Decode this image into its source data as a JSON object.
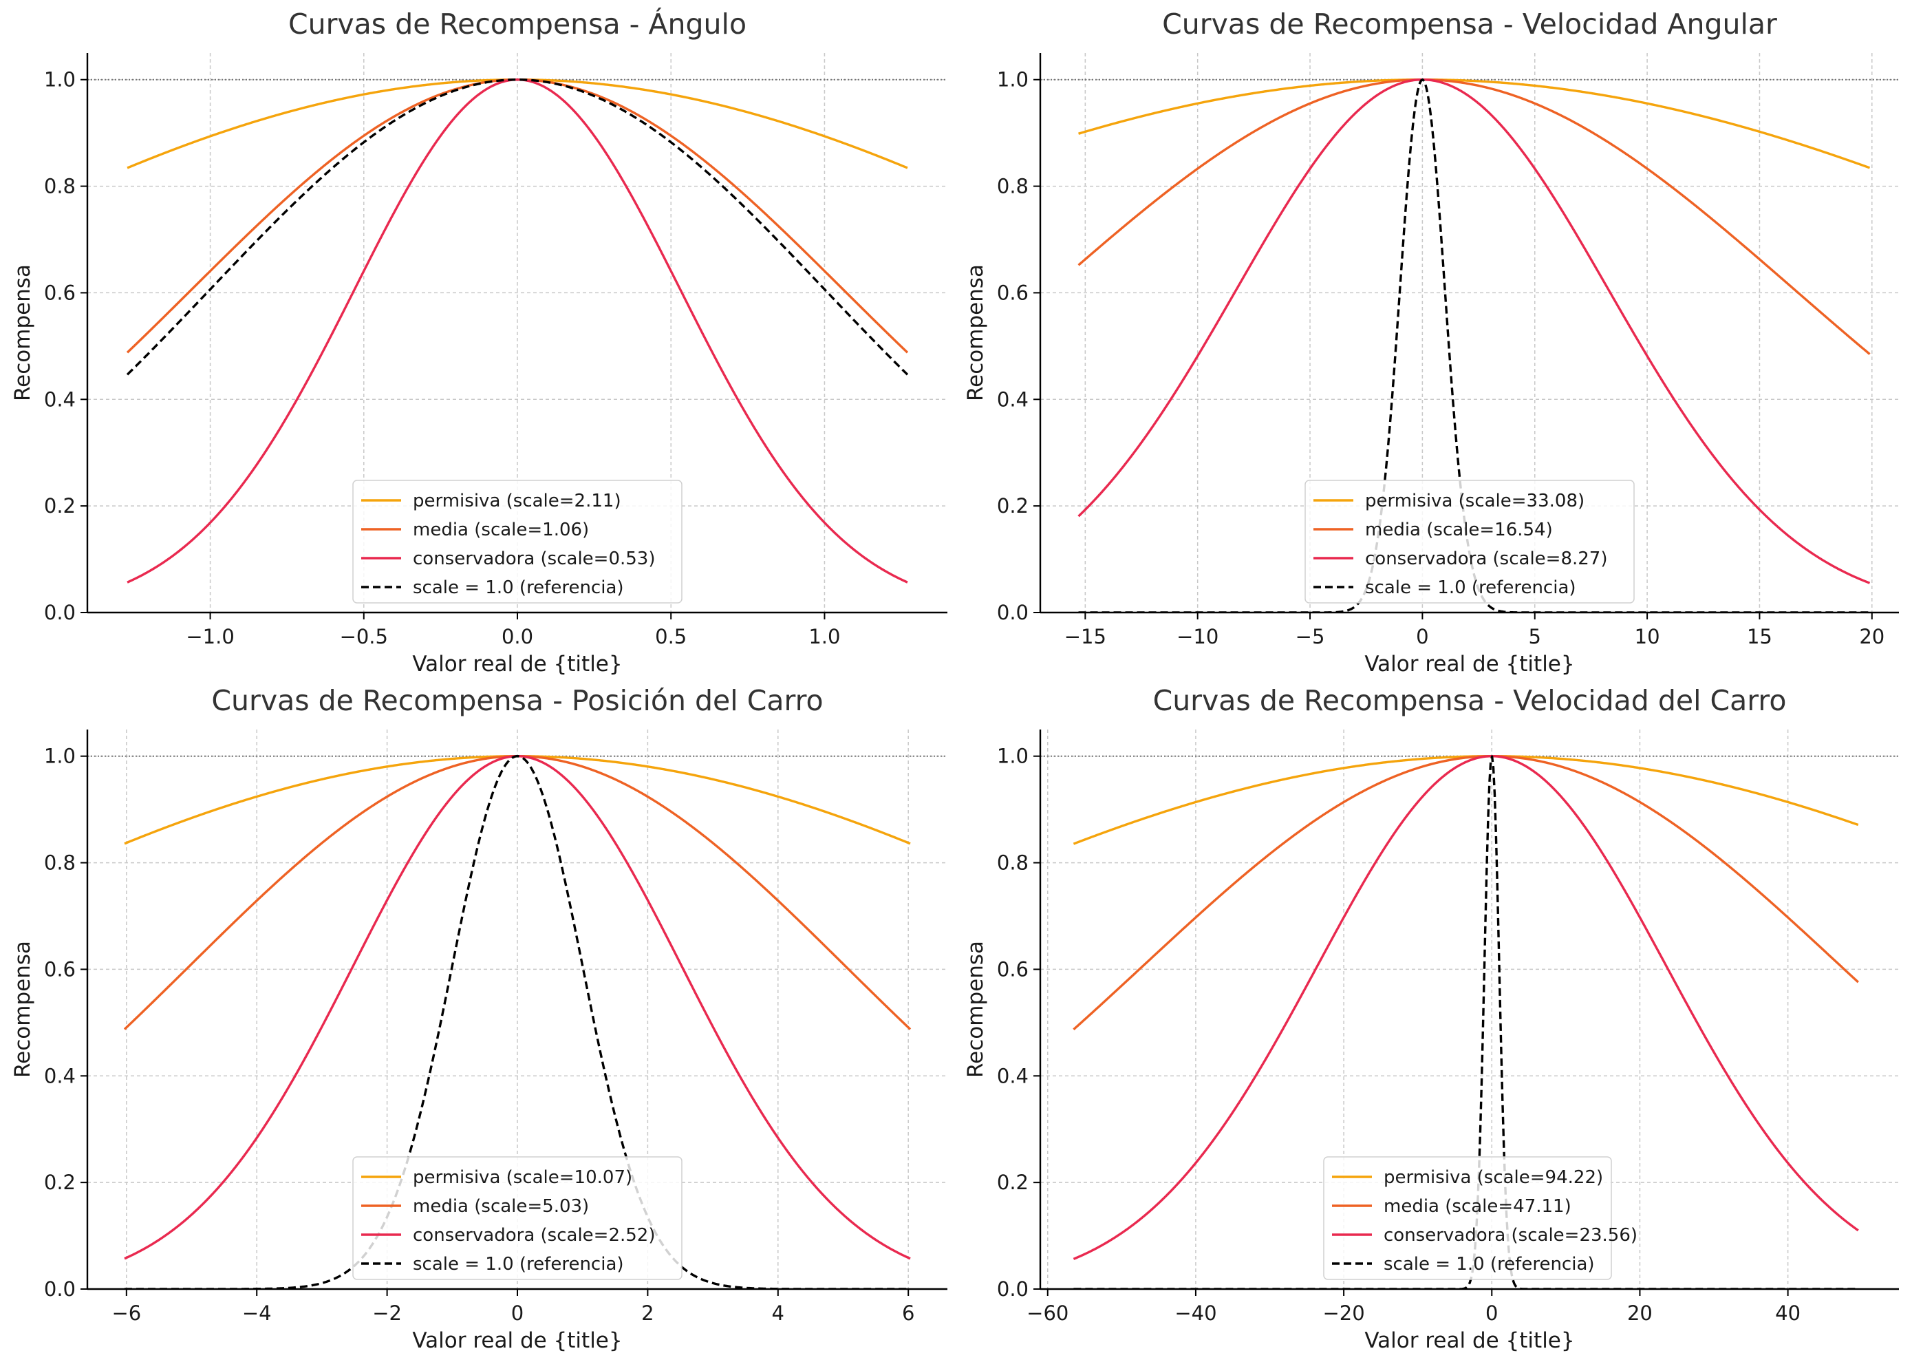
{
  "colors": {
    "permisiva": "#f5a40c",
    "media": "#ee6224",
    "conservadora": "#e9294f",
    "referencia": "#000000",
    "grid": "#c8c8c8",
    "text": "#1a1a1a",
    "title": "#333333"
  },
  "chart_data": [
    {
      "type": "line",
      "title": "Curvas de Recompensa - Ángulo",
      "xlabel": "Valor real de {title}",
      "ylabel": "Recompensa",
      "xlim": [
        -1.4,
        1.4
      ],
      "ylim": [
        0,
        1.05
      ],
      "x_range": [
        -1.27,
        1.27
      ],
      "xticks": [
        -1.0,
        -0.5,
        0.0,
        0.5,
        1.0
      ],
      "xtick_labels": [
        "−1.0",
        "−0.5",
        "0.0",
        "0.5",
        "1.0"
      ],
      "yticks": [
        0.0,
        0.2,
        0.4,
        0.6,
        0.8,
        1.0
      ],
      "ytick_labels": [
        "0.0",
        "0.2",
        "0.4",
        "0.6",
        "0.8",
        "1.0"
      ],
      "grid": true,
      "legend_position": "bottom-center",
      "series": [
        {
          "name": "permisiva (scale=2.11)",
          "scale": 2.11,
          "color_key": "permisiva",
          "style": "solid"
        },
        {
          "name": "media (scale=1.06)",
          "scale": 1.06,
          "color_key": "media",
          "style": "solid"
        },
        {
          "name": "conservadora (scale=0.53)",
          "scale": 0.53,
          "color_key": "conservadora",
          "style": "solid"
        },
        {
          "name": "scale = 1.0 (referencia)",
          "scale": 1.0,
          "color_key": "referencia",
          "style": "dashed"
        }
      ]
    },
    {
      "type": "line",
      "title": "Curvas de Recompensa - Velocidad Angular",
      "xlabel": "Valor real de {title}",
      "ylabel": "Recompensa",
      "xlim": [
        -17,
        21.2
      ],
      "ylim": [
        0,
        1.05
      ],
      "x_range": [
        -15.3,
        19.9
      ],
      "xticks": [
        -15,
        -10,
        -5,
        0,
        5,
        10,
        15,
        20
      ],
      "xtick_labels": [
        "−15",
        "−10",
        "−5",
        "0",
        "5",
        "10",
        "15",
        "20"
      ],
      "yticks": [
        0.0,
        0.2,
        0.4,
        0.6,
        0.8,
        1.0
      ],
      "ytick_labels": [
        "0.0",
        "0.2",
        "0.4",
        "0.6",
        "0.8",
        "1.0"
      ],
      "grid": true,
      "legend_position": "bottom-center",
      "series": [
        {
          "name": "permisiva (scale=33.08)",
          "scale": 33.08,
          "color_key": "permisiva",
          "style": "solid"
        },
        {
          "name": "media (scale=16.54)",
          "scale": 16.54,
          "color_key": "media",
          "style": "solid"
        },
        {
          "name": "conservadora (scale=8.27)",
          "scale": 8.27,
          "color_key": "conservadora",
          "style": "solid"
        },
        {
          "name": "scale = 1.0 (referencia)",
          "scale": 1.0,
          "color_key": "referencia",
          "style": "dashed"
        }
      ]
    },
    {
      "type": "line",
      "title": "Curvas de Recompensa - Posición del Carro",
      "xlabel": "Valor real de {title}",
      "ylabel": "Recompensa",
      "xlim": [
        -6.6,
        6.6
      ],
      "ylim": [
        0,
        1.05
      ],
      "x_range": [
        -6.03,
        6.03
      ],
      "xticks": [
        -6,
        -4,
        -2,
        0,
        2,
        4,
        6
      ],
      "xtick_labels": [
        "−6",
        "−4",
        "−2",
        "0",
        "2",
        "4",
        "6"
      ],
      "yticks": [
        0.0,
        0.2,
        0.4,
        0.6,
        0.8,
        1.0
      ],
      "ytick_labels": [
        "0.0",
        "0.2",
        "0.4",
        "0.6",
        "0.8",
        "1.0"
      ],
      "grid": true,
      "legend_position": "bottom-center",
      "series": [
        {
          "name": "permisiva (scale=10.07)",
          "scale": 10.07,
          "color_key": "permisiva",
          "style": "solid"
        },
        {
          "name": "media (scale=5.03)",
          "scale": 5.03,
          "color_key": "media",
          "style": "solid"
        },
        {
          "name": "conservadora (scale=2.52)",
          "scale": 2.52,
          "color_key": "conservadora",
          "style": "solid"
        },
        {
          "name": "scale = 1.0 (referencia)",
          "scale": 1.0,
          "color_key": "referencia",
          "style": "dashed"
        }
      ]
    },
    {
      "type": "line",
      "title": "Curvas de Recompensa - Velocidad del Carro",
      "xlabel": "Valor real de {title}",
      "ylabel": "Recompensa",
      "xlim": [
        -61,
        55
      ],
      "ylim": [
        0,
        1.05
      ],
      "x_range": [
        -56.5,
        49.5
      ],
      "xticks": [
        -60,
        -40,
        -20,
        0,
        20,
        40
      ],
      "xtick_labels": [
        "−60",
        "−40",
        "−20",
        "0",
        "20",
        "40"
      ],
      "yticks": [
        0.0,
        0.2,
        0.4,
        0.6,
        0.8,
        1.0
      ],
      "ytick_labels": [
        "0.0",
        "0.2",
        "0.4",
        "0.6",
        "0.8",
        "1.0"
      ],
      "grid": true,
      "legend_position": "bottom-center",
      "series": [
        {
          "name": "permisiva (scale=94.22)",
          "scale": 94.22,
          "color_key": "permisiva",
          "style": "solid"
        },
        {
          "name": "media (scale=47.11)",
          "scale": 47.11,
          "color_key": "media",
          "style": "solid"
        },
        {
          "name": "conservadora (scale=23.56)",
          "scale": 23.56,
          "color_key": "conservadora",
          "style": "solid"
        },
        {
          "name": "scale = 1.0 (referencia)",
          "scale": 1.0,
          "color_key": "referencia",
          "style": "dashed"
        }
      ]
    }
  ]
}
